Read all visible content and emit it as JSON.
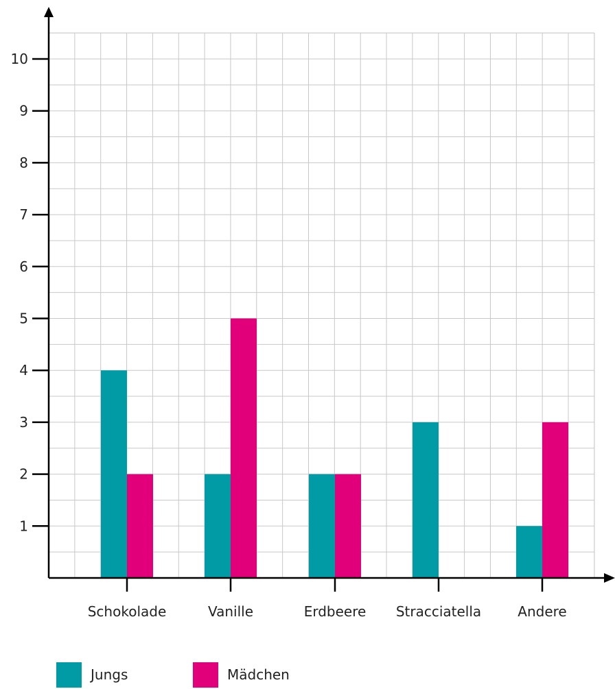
{
  "chart_data": {
    "type": "bar",
    "categories": [
      "Schokolade",
      "Vanille",
      "Erdbeere",
      "Stracciatella",
      "Andere"
    ],
    "series": [
      {
        "name": "Jungs",
        "values": [
          4,
          2,
          2,
          3,
          1
        ],
        "color": "#009ba4"
      },
      {
        "name": "Mädchen",
        "values": [
          2,
          5,
          2,
          0,
          3
        ],
        "color": "#e2007a"
      }
    ],
    "yticks": [
      1,
      2,
      3,
      4,
      5,
      6,
      7,
      8,
      9,
      10
    ],
    "ylim": [
      0,
      10.5
    ],
    "grid": true,
    "grid_color": "#c8c8c8",
    "axis_color": "#000000",
    "legend_position": "bottom-left"
  }
}
